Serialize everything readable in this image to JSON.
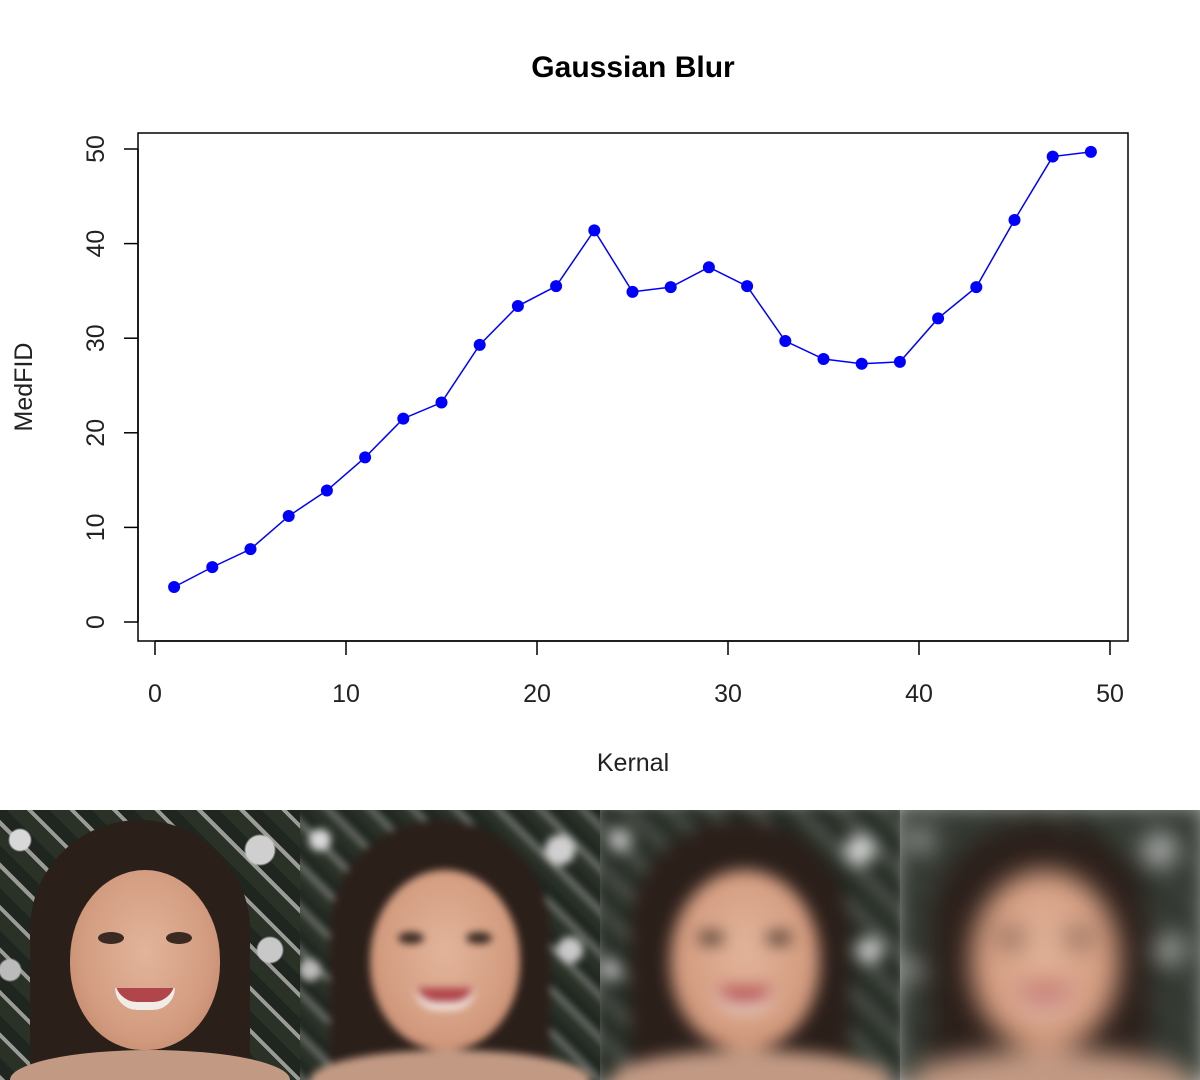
{
  "chart_data": {
    "type": "line",
    "title": "Gaussian Blur",
    "xlabel": "Kernal",
    "ylabel": "MedFID",
    "xlim": [
      0,
      50
    ],
    "ylim": [
      0,
      50
    ],
    "xticks": [
      0,
      10,
      20,
      30,
      40,
      50
    ],
    "yticks": [
      0,
      10,
      20,
      30,
      40,
      50
    ],
    "grid": false,
    "series": [
      {
        "color": "#0000ff",
        "marker": "filled-circle",
        "x": [
          1,
          3,
          5,
          7,
          9,
          11,
          13,
          15,
          17,
          19,
          21,
          23,
          25,
          27,
          29,
          31,
          33,
          35,
          37,
          39,
          41,
          43,
          45,
          47,
          49
        ],
        "y": [
          3.7,
          5.8,
          7.7,
          11.2,
          13.9,
          17.4,
          21.5,
          23.2,
          29.3,
          33.4,
          35.5,
          41.4,
          34.9,
          35.4,
          37.5,
          35.5,
          29.7,
          27.8,
          27.3,
          27.5,
          32.1,
          35.4,
          42.5,
          49.2,
          49.7
        ]
      }
    ]
  },
  "photos": [
    {
      "name": "face-photo-original",
      "blur": "none"
    },
    {
      "name": "face-photo-blur-light",
      "blur": "light"
    },
    {
      "name": "face-photo-blur-medium",
      "blur": "medium"
    },
    {
      "name": "face-photo-blur-strong",
      "blur": "strong"
    }
  ]
}
